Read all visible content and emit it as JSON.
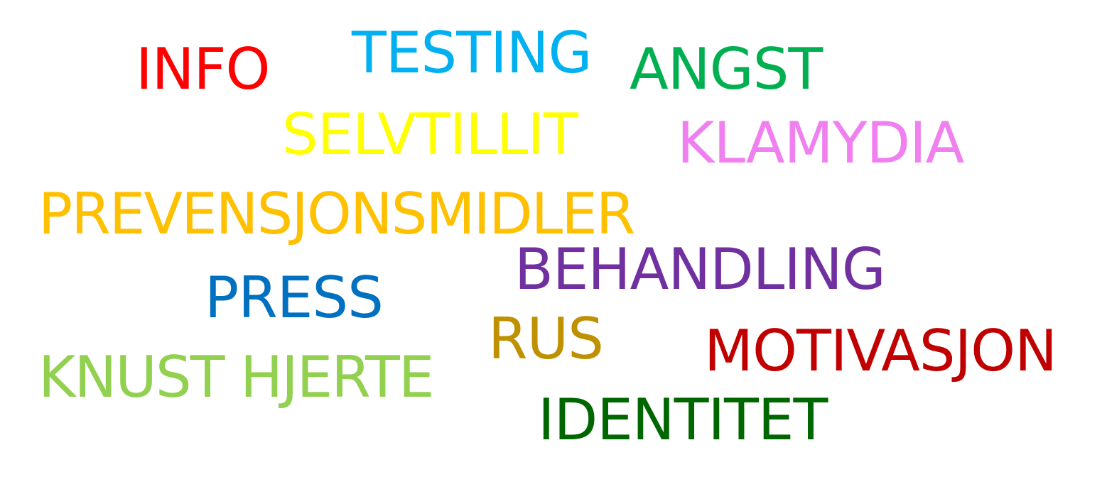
{
  "words": [
    {
      "text": "INFO",
      "color": "#ff0000"
    },
    {
      "text": "TESTING",
      "color": "#00b0f0"
    },
    {
      "text": "ANGST",
      "color": "#00b050"
    },
    {
      "text": "SELVTILLIT",
      "color": "#ffff00"
    },
    {
      "text": "KLAMYDIA",
      "color": "#f080f0"
    },
    {
      "text": "PREVENSJONSMIDLER",
      "color": "#ffc000"
    },
    {
      "text": "BEHANDLING",
      "color": "#7030a0"
    },
    {
      "text": "PRESS",
      "color": "#0070c0"
    },
    {
      "text": "RUS",
      "color": "#bf9000"
    },
    {
      "text": "MOTIVASJON",
      "color": "#c00000"
    },
    {
      "text": "KNUST HJERTE",
      "color": "#92d050"
    },
    {
      "text": "IDENTITET",
      "color": "#006600"
    }
  ]
}
